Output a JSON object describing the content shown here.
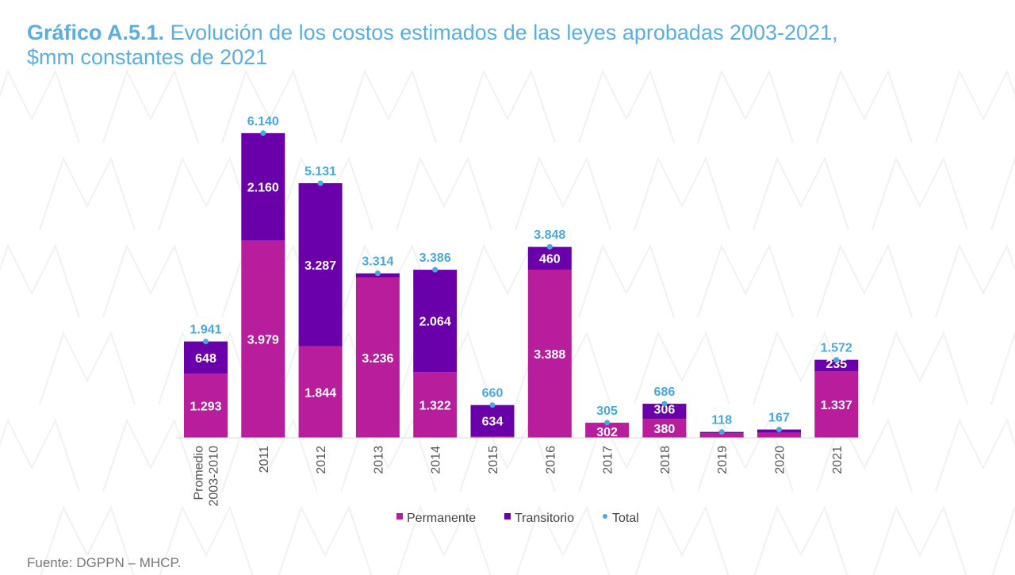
{
  "title": {
    "prefix": "Gráfico A.5.1.",
    "line1": " Evolución de los costos estimados de las leyes aprobadas 2003-2021,",
    "line2": "$mm constantes de 2021"
  },
  "source": "Fuente: DGPPN – MHCP.",
  "colors": {
    "permanente": "#b81e9c",
    "transitorio": "#6a00aa",
    "total": "#4aa8e0",
    "title": "#5aaee0"
  },
  "chart_data": {
    "type": "bar",
    "stacked": true,
    "title": "Gráfico A.5.1. Evolución de los costos estimados de las leyes aprobadas 2003-2021, $mm constantes de 2021",
    "xlabel": "",
    "ylabel": "",
    "ylim": [
      0,
      7000
    ],
    "grid": false,
    "legend_position": "bottom",
    "categories": [
      "Promedio 2003-2010",
      "2011",
      "2012",
      "2013",
      "2014",
      "2015",
      "2016",
      "2017",
      "2018",
      "2019",
      "2020",
      "2021"
    ],
    "series": [
      {
        "name": "Permanente",
        "kind": "bar",
        "values": [
          1293,
          3979,
          1844,
          3236,
          1322,
          26,
          3388,
          302,
          380,
          90,
          100,
          1337
        ],
        "labels": [
          "1.293",
          "3.979",
          "1.844",
          "3.236",
          "1.322",
          "",
          "3.388",
          "302",
          "380",
          "",
          "",
          "1.337"
        ]
      },
      {
        "name": "Transitorio",
        "kind": "bar",
        "values": [
          648,
          2160,
          3287,
          78,
          2064,
          634,
          460,
          3,
          306,
          28,
          67,
          235
        ],
        "labels": [
          "648",
          "2.160",
          "3.287",
          "",
          "2.064",
          "634",
          "460",
          "",
          "306",
          "",
          "",
          "235"
        ]
      },
      {
        "name": "Total",
        "kind": "point",
        "values": [
          1941,
          6140,
          5131,
          3314,
          3386,
          660,
          3848,
          305,
          686,
          118,
          167,
          1572
        ],
        "labels": [
          "1.941",
          "6.140",
          "5.131",
          "3.314",
          "3.386",
          "660",
          "3.848",
          "305",
          "686",
          "118",
          "167",
          "1.572"
        ]
      }
    ],
    "legend": [
      "Permanente",
      "Transitorio",
      "Total"
    ]
  }
}
